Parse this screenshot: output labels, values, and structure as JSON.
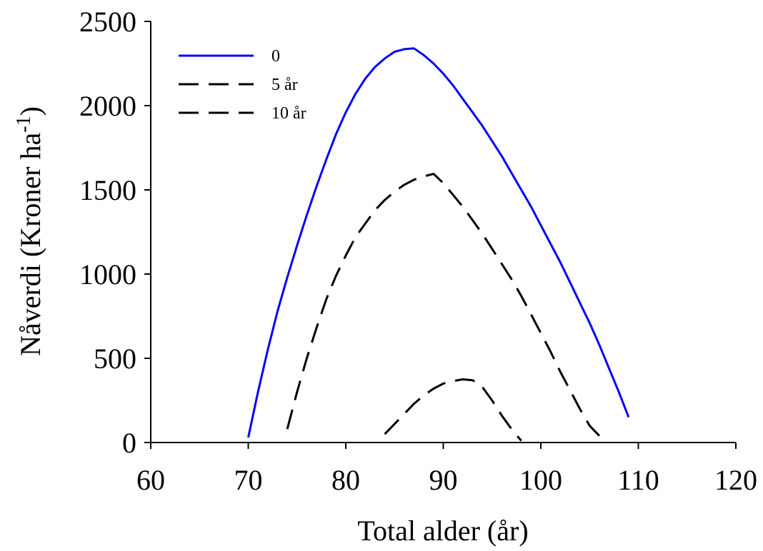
{
  "chart_data": {
    "type": "line",
    "title": "",
    "xlabel": "Total alder (år)",
    "ylabel_main": "Nåverdi (Kroner ha",
    "ylabel_sup": "-1",
    "ylabel_close": ")",
    "xlim": [
      60,
      120
    ],
    "ylim": [
      0,
      2500
    ],
    "xticks": [
      60,
      70,
      80,
      90,
      100,
      110,
      120
    ],
    "yticks": [
      0,
      500,
      1000,
      1500,
      2000,
      2500
    ],
    "grid": false,
    "legend_position": "top-left",
    "series": [
      {
        "name": "0",
        "color": "#0000ff",
        "style": "solid",
        "x": [
          70,
          71,
          72,
          73,
          74,
          75,
          76,
          77,
          78,
          79,
          80,
          81,
          82,
          83,
          84,
          85,
          86,
          87,
          88,
          89,
          90,
          91,
          92,
          93,
          94,
          95,
          96,
          97,
          98,
          99,
          100,
          101,
          102,
          103,
          104,
          105,
          106,
          107,
          108,
          109
        ],
        "y": [
          30,
          300,
          550,
          780,
          980,
          1170,
          1350,
          1520,
          1680,
          1830,
          1960,
          2070,
          2160,
          2230,
          2280,
          2320,
          2335,
          2340,
          2300,
          2250,
          2190,
          2120,
          2040,
          1960,
          1880,
          1790,
          1700,
          1600,
          1500,
          1400,
          1290,
          1180,
          1070,
          950,
          830,
          710,
          580,
          440,
          300,
          150
        ]
      },
      {
        "name": "5 år",
        "color": "#000000",
        "style": "dashed",
        "x": [
          74,
          75,
          76,
          77,
          78,
          79,
          80,
          81,
          82,
          83,
          84,
          85,
          86,
          87,
          88,
          89,
          90,
          91,
          92,
          93,
          94,
          95,
          96,
          97,
          98,
          99,
          100,
          101,
          102,
          103,
          104,
          105,
          106
        ],
        "y": [
          80,
          300,
          500,
          680,
          850,
          990,
          1110,
          1220,
          1300,
          1380,
          1440,
          1490,
          1530,
          1560,
          1580,
          1595,
          1540,
          1470,
          1400,
          1320,
          1240,
          1150,
          1060,
          970,
          870,
          760,
          650,
          540,
          420,
          310,
          200,
          100,
          40
        ]
      },
      {
        "name": "10 år",
        "color": "#000000",
        "style": "dashed",
        "x": [
          84,
          85,
          86,
          87,
          88,
          89,
          90,
          91,
          92,
          93,
          94,
          95,
          96,
          97,
          98
        ],
        "y": [
          50,
          110,
          170,
          230,
          280,
          320,
          350,
          365,
          375,
          370,
          330,
          250,
          160,
          80,
          10
        ]
      }
    ]
  }
}
